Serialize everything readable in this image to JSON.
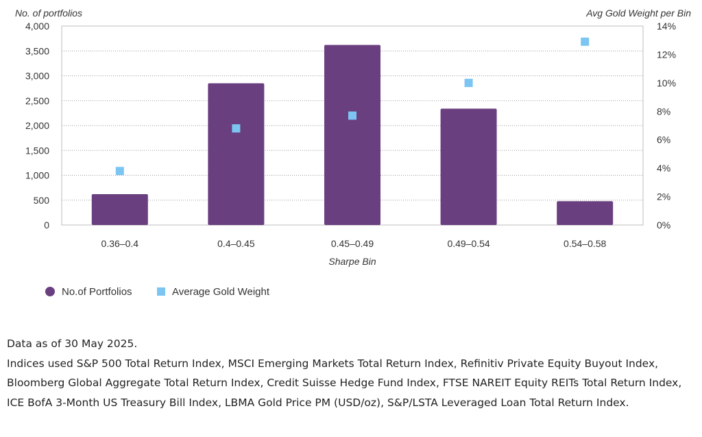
{
  "chart_data": {
    "type": "bar",
    "categories": [
      "0.36–0.4",
      "0.4–0.45",
      "0.45–0.49",
      "0.49–0.54",
      "0.54–0.58"
    ],
    "series": [
      {
        "name": "No.of Portfolios",
        "type": "bar",
        "axis": "left",
        "values": [
          620,
          2850,
          3620,
          2340,
          480
        ],
        "color": "#6a3f7f"
      },
      {
        "name": "Average Gold Weight",
        "type": "scatter",
        "axis": "right",
        "values": [
          3.8,
          6.8,
          7.7,
          10.0,
          12.9
        ],
        "color": "#7cc4f2"
      }
    ],
    "xlabel": "Sharpe Bin",
    "ylabel": "No. of portfolios",
    "y2label": "Avg Gold Weight per Bin",
    "ylim": [
      0,
      4000
    ],
    "yticks": [
      0,
      500,
      1000,
      1500,
      2000,
      2500,
      3000,
      3500,
      4000
    ],
    "ytick_labels": [
      "0",
      "500",
      "1,000",
      "1,500",
      "2,000",
      "2,500",
      "3,000",
      "3,500",
      "4,000"
    ],
    "y2lim": [
      0,
      14
    ],
    "y2ticks": [
      0,
      2,
      4,
      6,
      8,
      10,
      12,
      14
    ],
    "y2tick_labels": [
      "0%",
      "2%",
      "4%",
      "6%",
      "8%",
      "10%",
      "12%",
      "14%"
    ],
    "grid": true,
    "legend": "bottom-left"
  },
  "footnote": {
    "date_line": "Data as of 30 May 2025.",
    "indices_line": "Indices used S&P 500 Total Return Index, MSCI Emerging Markets Total Return Index, Refinitiv Private Equity Buyout Index, Bloomberg Global Aggregate Total Return Index, Credit Suisse Hedge Fund Index, FTSE NAREIT Equity REITs Total Return Index, ICE BofA 3-Month US Treasury Bill Index, LBMA Gold Price PM (USD/oz), S&P/LSTA Leveraged Loan Total Return Index."
  }
}
